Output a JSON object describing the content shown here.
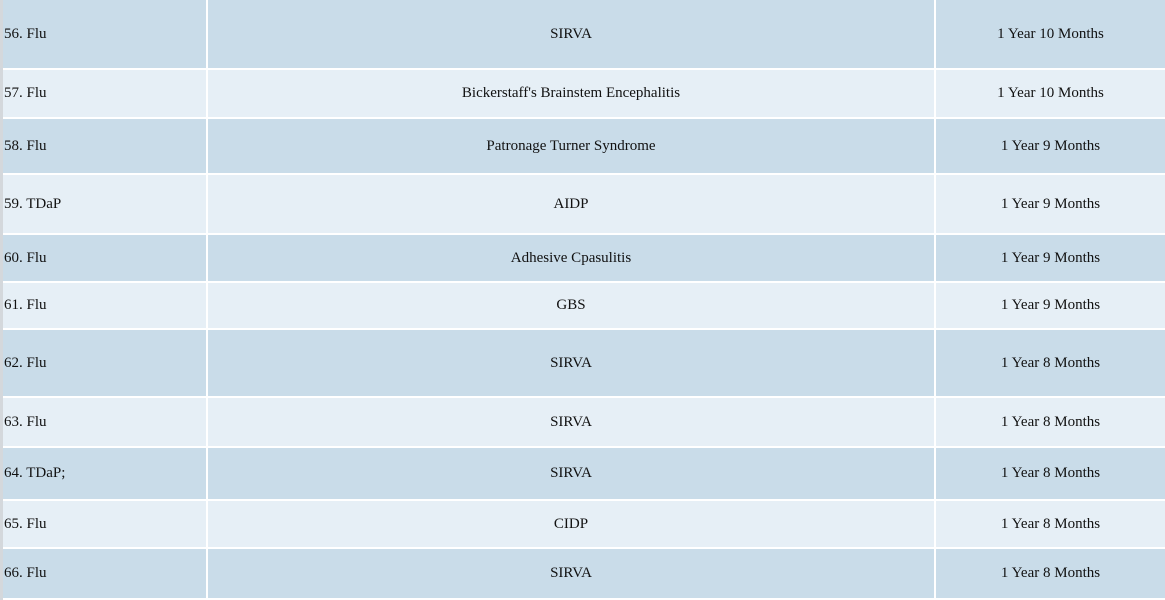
{
  "table": {
    "rows": [
      [
        "56. Flu",
        "SIRVA",
        "1 Year 10 Months"
      ],
      [
        "57. Flu",
        "Bickerstaff's Brainstem Encephalitis",
        "1 Year 10 Months"
      ],
      [
        "58. Flu",
        "Patronage Turner Syndrome",
        "1 Year 9 Months"
      ],
      [
        "59. TDaP",
        "AIDP",
        "1 Year 9 Months"
      ],
      [
        "60. Flu",
        "Adhesive Cpasulitis",
        "1 Year 9 Months"
      ],
      [
        "61. Flu",
        "GBS",
        "1 Year 9 Months"
      ],
      [
        "62. Flu",
        "SIRVA",
        "1 Year 8 Months"
      ],
      [
        "63. Flu",
        "SIRVA",
        "1 Year 8 Months"
      ],
      [
        "64. TDaP;",
        "SIRVA",
        "1 Year 8 Months"
      ],
      [
        "65. Flu",
        "CIDP",
        "1 Year 8 Months"
      ],
      [
        "66. Flu",
        "SIRVA",
        "1 Year 8 Months"
      ]
    ]
  }
}
